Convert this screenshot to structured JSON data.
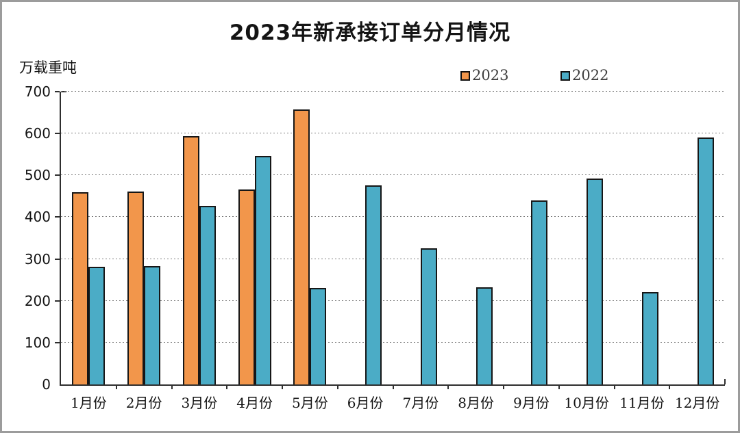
{
  "chart_data": {
    "type": "bar",
    "title": "2023年新承接订单分月情况",
    "ylabel": "万载重吨",
    "xlabel": "",
    "categories": [
      "1月份",
      "2月份",
      "3月份",
      "4月份",
      "5月份",
      "6月份",
      "7月份",
      "8月份",
      "9月份",
      "10月份",
      "11月份",
      "12月份"
    ],
    "series": [
      {
        "name": "2023",
        "color": "#F2964B",
        "values": [
          459,
          461,
          593,
          466,
          658,
          null,
          null,
          null,
          null,
          null,
          null,
          null
        ]
      },
      {
        "name": "2022",
        "color": "#4BACC6",
        "values": [
          281,
          283,
          427,
          546,
          230,
          476,
          326,
          232,
          440,
          493,
          220,
          591
        ]
      }
    ],
    "ylim": [
      0,
      700
    ],
    "y_ticks": [
      0,
      100,
      200,
      300,
      400,
      500,
      600,
      700
    ],
    "grid": "horizontal-dashed",
    "legend_position": "top-center",
    "bar_border_color": "#161616",
    "gridline_color": "#7d7d7d"
  }
}
